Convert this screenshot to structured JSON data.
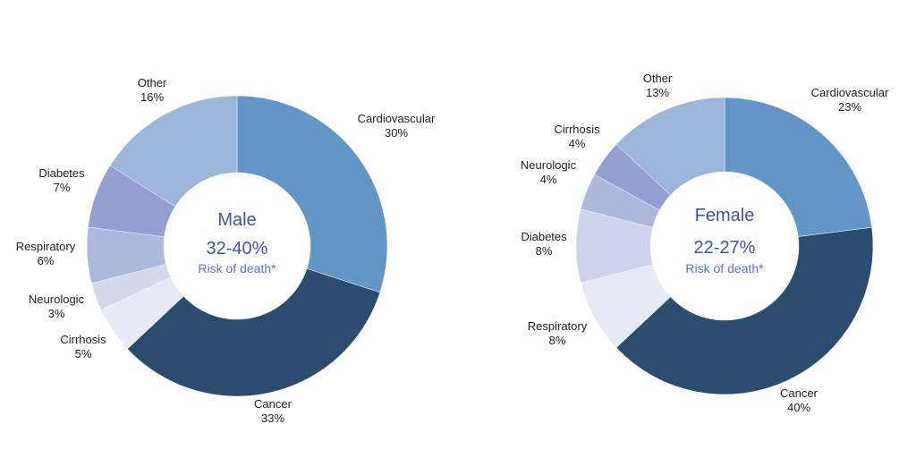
{
  "colors": {
    "Cardiovascular": "#6495c7",
    "Cancer": "#2b4c6f",
    "Cirrhosis": "#e8ebf6",
    "Neurologic": "#d3d8eb",
    "Respiratory": "#aeb8dd",
    "Diabetes": "#939fd0",
    "Other": "#9bb5db",
    "female_Respiratory": "#e6e9f6",
    "female_Diabetes": "#cdd3ea",
    "female_Neurologic": "#aeb8dd",
    "female_Cirrhosis": "#939fd0"
  },
  "chart_data": [
    {
      "type": "pie",
      "center": {
        "title": "Male",
        "range": "32-40%",
        "subtitle": "Risk of death*"
      },
      "slices": [
        {
          "name": "Cardiovascular",
          "label": "Cardiovascular",
          "pct_label": "30%",
          "value": 30
        },
        {
          "name": "Cancer",
          "label": "Cancer",
          "pct_label": "33%",
          "value": 33
        },
        {
          "name": "Cirrhosis",
          "label": "Cirrhosis",
          "pct_label": "5%",
          "value": 5
        },
        {
          "name": "Neurologic",
          "label": "Neurologic",
          "pct_label": "3%",
          "value": 3
        },
        {
          "name": "Respiratory",
          "label": "Respiratory",
          "pct_label": "6%",
          "value": 6
        },
        {
          "name": "Diabetes",
          "label": "Diabetes",
          "pct_label": "7%",
          "value": 7
        },
        {
          "name": "Other",
          "label": "Other",
          "pct_label": "16%",
          "value": 16
        }
      ]
    },
    {
      "type": "pie",
      "center": {
        "title": "Female",
        "range": "22-27%",
        "subtitle": "Risk of death*"
      },
      "slices": [
        {
          "name": "Cardiovascular",
          "label": "Cardiovascular",
          "pct_label": "23%",
          "value": 23
        },
        {
          "name": "Cancer",
          "label": "Cancer",
          "pct_label": "40%",
          "value": 40
        },
        {
          "name": "Respiratory",
          "label": "Respiratory",
          "pct_label": "8%",
          "value": 8
        },
        {
          "name": "Diabetes",
          "label": "Diabetes",
          "pct_label": "8%",
          "value": 8
        },
        {
          "name": "Neurologic",
          "label": "Neurologic",
          "pct_label": "4%",
          "value": 4
        },
        {
          "name": "Cirrhosis",
          "label": "Cirrhosis",
          "pct_label": "4%",
          "value": 4
        },
        {
          "name": "Other",
          "label": "Other",
          "pct_label": "13%",
          "value": 13
        }
      ]
    }
  ]
}
